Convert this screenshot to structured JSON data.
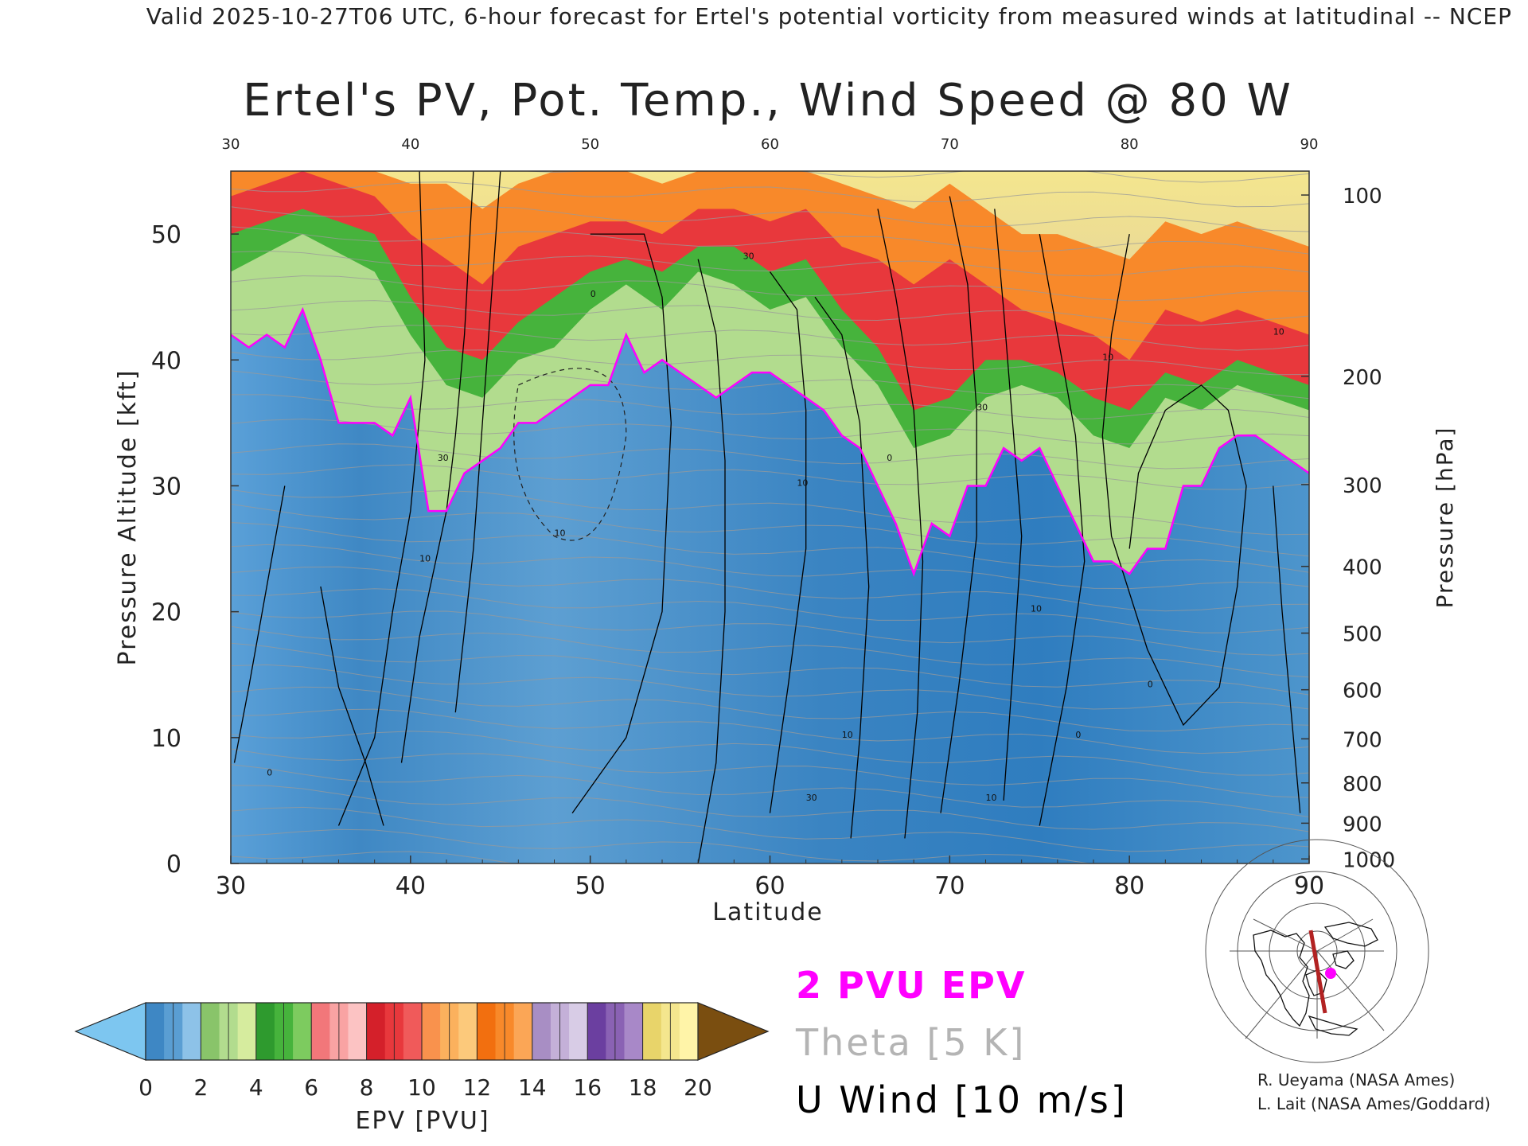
{
  "header": {
    "valid_line": "Valid 2025-10-27T06 UTC, 6-hour forecast for Ertel's potential vorticity from measured winds at latitudinal -- NCEP"
  },
  "chart_data": {
    "type": "heatmap",
    "title": "Ertel's PV, Pot. Temp., Wind Speed @ 80 W",
    "xlabel": "Latitude",
    "ylabel_left": "Pressure Altitude [kft]",
    "ylabel_right": "Pressure [hPa]",
    "xlim": [
      30,
      90
    ],
    "ylim": [
      0,
      55
    ],
    "x_ticks": [
      "30",
      "40",
      "50",
      "60",
      "70",
      "80",
      "90"
    ],
    "x_ticks_top": [
      "30",
      "40",
      "50",
      "60",
      "70",
      "80",
      "90"
    ],
    "y_ticks_left": [
      "0",
      "10",
      "20",
      "30",
      "40",
      "50"
    ],
    "y_ticks_right": [
      {
        "label": "100",
        "kft": 53.1
      },
      {
        "label": "200",
        "kft": 38.7
      },
      {
        "label": "300",
        "kft": 30.1
      },
      {
        "label": "400",
        "kft": 23.6
      },
      {
        "label": "500",
        "kft": 18.3
      },
      {
        "label": "600",
        "kft": 13.8
      },
      {
        "label": "700",
        "kft": 9.9
      },
      {
        "label": "800",
        "kft": 6.4
      },
      {
        "label": "900",
        "kft": 3.2
      },
      {
        "label": "1000",
        "kft": 0.36
      }
    ],
    "tropopause_2pvu_kft": [
      [
        30,
        42
      ],
      [
        31,
        41
      ],
      [
        32,
        42
      ],
      [
        33,
        41
      ],
      [
        34,
        44
      ],
      [
        35,
        40
      ],
      [
        36,
        35
      ],
      [
        37,
        35
      ],
      [
        38,
        35
      ],
      [
        39,
        34
      ],
      [
        40,
        37
      ],
      [
        41,
        28
      ],
      [
        42,
        28
      ],
      [
        43,
        31
      ],
      [
        44,
        32
      ],
      [
        45,
        33
      ],
      [
        46,
        35
      ],
      [
        47,
        35
      ],
      [
        48,
        36
      ],
      [
        49,
        37
      ],
      [
        50,
        38
      ],
      [
        51,
        38
      ],
      [
        52,
        42
      ],
      [
        53,
        39
      ],
      [
        54,
        40
      ],
      [
        55,
        39
      ],
      [
        56,
        38
      ],
      [
        57,
        37
      ],
      [
        58,
        38
      ],
      [
        59,
        39
      ],
      [
        60,
        39
      ],
      [
        61,
        38
      ],
      [
        62,
        37
      ],
      [
        63,
        36
      ],
      [
        64,
        34
      ],
      [
        65,
        33
      ],
      [
        66,
        30
      ],
      [
        67,
        27
      ],
      [
        68,
        23
      ],
      [
        69,
        27
      ],
      [
        70,
        26
      ],
      [
        71,
        30
      ],
      [
        72,
        30
      ],
      [
        73,
        33
      ],
      [
        74,
        32
      ],
      [
        75,
        33
      ],
      [
        76,
        30
      ],
      [
        77,
        27
      ],
      [
        78,
        24
      ],
      [
        79,
        24
      ],
      [
        80,
        23
      ],
      [
        81,
        25
      ],
      [
        82,
        25
      ],
      [
        83,
        30
      ],
      [
        84,
        30
      ],
      [
        85,
        33
      ],
      [
        86,
        34
      ],
      [
        87,
        34
      ],
      [
        88,
        33
      ],
      [
        89,
        32
      ],
      [
        90,
        31
      ]
    ],
    "zone_tops_kft": {
      "pvu_4": [
        [
          30,
          47
        ],
        [
          34,
          50
        ],
        [
          38,
          47
        ],
        [
          40,
          42
        ],
        [
          42,
          38
        ],
        [
          44,
          37
        ],
        [
          46,
          40
        ],
        [
          48,
          41
        ],
        [
          50,
          44
        ],
        [
          52,
          46
        ],
        [
          54,
          44
        ],
        [
          56,
          47
        ],
        [
          58,
          46
        ],
        [
          60,
          44
        ],
        [
          62,
          45
        ],
        [
          64,
          41
        ],
        [
          66,
          38
        ],
        [
          68,
          33
        ],
        [
          70,
          34
        ],
        [
          72,
          37
        ],
        [
          74,
          38
        ],
        [
          76,
          37
        ],
        [
          78,
          34
        ],
        [
          80,
          33
        ],
        [
          82,
          37
        ],
        [
          84,
          36
        ],
        [
          86,
          38
        ],
        [
          88,
          37
        ],
        [
          90,
          36
        ]
      ],
      "pvu_6": [
        [
          30,
          50
        ],
        [
          34,
          52
        ],
        [
          38,
          50
        ],
        [
          40,
          45
        ],
        [
          42,
          41
        ],
        [
          44,
          40
        ],
        [
          46,
          43
        ],
        [
          48,
          45
        ],
        [
          50,
          47
        ],
        [
          52,
          48
        ],
        [
          54,
          47
        ],
        [
          56,
          49
        ],
        [
          58,
          49
        ],
        [
          60,
          47
        ],
        [
          62,
          48
        ],
        [
          64,
          44
        ],
        [
          66,
          41
        ],
        [
          68,
          36
        ],
        [
          70,
          37
        ],
        [
          72,
          40
        ],
        [
          74,
          40
        ],
        [
          76,
          39
        ],
        [
          78,
          37
        ],
        [
          80,
          36
        ],
        [
          82,
          39
        ],
        [
          84,
          38
        ],
        [
          86,
          40
        ],
        [
          88,
          39
        ],
        [
          90,
          38
        ]
      ],
      "pvu_10": [
        [
          30,
          53
        ],
        [
          34,
          55
        ],
        [
          38,
          53
        ],
        [
          40,
          50
        ],
        [
          42,
          48
        ],
        [
          44,
          46
        ],
        [
          46,
          49
        ],
        [
          48,
          50
        ],
        [
          50,
          51
        ],
        [
          52,
          51
        ],
        [
          54,
          50
        ],
        [
          56,
          52
        ],
        [
          58,
          52
        ],
        [
          60,
          51
        ],
        [
          62,
          52
        ],
        [
          64,
          49
        ],
        [
          66,
          48
        ],
        [
          68,
          46
        ],
        [
          70,
          48
        ],
        [
          72,
          46
        ],
        [
          74,
          44
        ],
        [
          76,
          43
        ],
        [
          78,
          42
        ],
        [
          80,
          40
        ],
        [
          82,
          44
        ],
        [
          84,
          43
        ],
        [
          86,
          44
        ],
        [
          88,
          43
        ],
        [
          90,
          42
        ]
      ],
      "pvu_14": [
        [
          30,
          55
        ],
        [
          34,
          55
        ],
        [
          38,
          55
        ],
        [
          40,
          54
        ],
        [
          42,
          54
        ],
        [
          44,
          52
        ],
        [
          46,
          54
        ],
        [
          48,
          55
        ],
        [
          50,
          55
        ],
        [
          52,
          55
        ],
        [
          54,
          54
        ],
        [
          56,
          55
        ],
        [
          58,
          55
        ],
        [
          60,
          55
        ],
        [
          62,
          55
        ],
        [
          64,
          54
        ],
        [
          66,
          53
        ],
        [
          68,
          52
        ],
        [
          70,
          54
        ],
        [
          72,
          52
        ],
        [
          74,
          50
        ],
        [
          76,
          50
        ],
        [
          78,
          49
        ],
        [
          80,
          48
        ],
        [
          82,
          51
        ],
        [
          84,
          50
        ],
        [
          86,
          51
        ],
        [
          88,
          50
        ],
        [
          90,
          49
        ]
      ]
    },
    "wind_contour_labels": [
      "0",
      "10",
      "30",
      "10",
      "0",
      "30",
      "10",
      "30",
      "10",
      "0",
      "30",
      "10",
      "10",
      "0",
      "10",
      "0",
      "10"
    ],
    "colorbar": {
      "label": "EPV [PVU]",
      "ticks": [
        "0",
        "2",
        "4",
        "6",
        "8",
        "10",
        "12",
        "14",
        "16",
        "18",
        "20"
      ],
      "segments": [
        [
          "#3e87c4",
          "#5a9ed3",
          "#8dc2e8"
        ],
        [
          "#89c46a",
          "#b2dc8e",
          "#d6ec9e"
        ],
        [
          "#2e9a2e",
          "#46b33c",
          "#7dcb5f"
        ],
        [
          "#f2777a",
          "#f9a3a3",
          "#fcc3c3"
        ],
        [
          "#d4202a",
          "#e8383c",
          "#f05a5a"
        ],
        [
          "#f9924d",
          "#fbb15d",
          "#fcc97b"
        ],
        [
          "#f26f0f",
          "#f8892a",
          "#fba656"
        ],
        [
          "#a88ec4",
          "#c4b0d8",
          "#d8cce6"
        ],
        [
          "#6b3fa0",
          "#8a62b4",
          "#a888c8"
        ],
        [
          "#e8d46a",
          "#f4e68e",
          "#fff4a8"
        ]
      ],
      "under_color": "#7dc6f0",
      "over_color": "#7a4e10"
    }
  },
  "legend": {
    "pvu_epv": "2 PVU EPV",
    "theta": "Theta [5 K]",
    "u_wind": "U Wind [10 m/s]"
  },
  "credits": {
    "line1": "R. Ueyama (NASA Ames)",
    "line2": "L. Lait (NASA Ames/Goddard)"
  },
  "colors": {
    "tropopause_line": "#ff00ff",
    "theta_line": "#9a9a9a",
    "wind_contour": "#000000",
    "troposphere_fill": "#4d95cc",
    "section_line": "#b22222",
    "location_dot": "#ff00ff"
  }
}
